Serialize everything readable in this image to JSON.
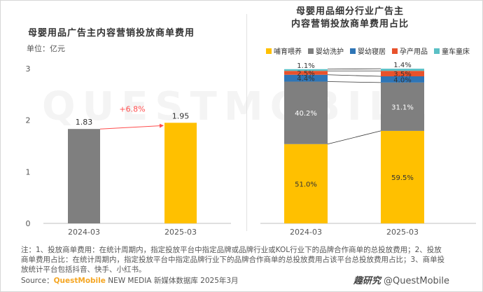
{
  "left_title": "母婴用品广告主内容营销投放商单费用",
  "unit_label": "单位：亿元",
  "right_title_line1": "母婴用品细分行业广告主",
  "right_title_line2": "内容营销投放商单费用占比",
  "growth_label": "+6.8%",
  "notes": "注：1、投放商单费用：在统计周期内，指定投放平台中指定品牌或品牌行业或KOL行业下的品牌合作商单的总投放费用；2、投放商单费用占比：在统计周期内，指定投放平台中指定品牌行业下的品牌合作商单的总投放费用占该平台总投放费用占比；3、商单投放统计平台包括抖音、快手、小红书。",
  "source_prefix": "Source：",
  "source_brand": "QuestMobile",
  "source_rest": " NEW MEDIA 新媒体数据库 2025年3月",
  "watermark_logo": "趣研究",
  "watermark_text": "@QuestMobile",
  "background_watermark": "QUESTMOBILE",
  "colors": {
    "gray_bar": "#7f7f7f",
    "yellow_bar": "#ffc000",
    "orange_bar": "#f5a623",
    "nurse": "#ffc000",
    "wash": "#7f7f7f",
    "sleep": "#2e75b6",
    "maternity": "#e8522c",
    "stroller": "#5bc0c5",
    "arrow": "#ff4d4d"
  },
  "chart_data": [
    {
      "type": "bar",
      "title": "母婴用品广告主内容营销投放商单费用",
      "ylabel": "单位：亿元",
      "categories": [
        "2024-03",
        "2025-03"
      ],
      "values": [
        1.83,
        1.95
      ],
      "ylim": [
        0,
        3
      ],
      "yticks": [
        0,
        1,
        2,
        3
      ],
      "annotation": "+6.8%"
    },
    {
      "type": "bar",
      "stacked": true,
      "title": "母婴用品细分行业广告主内容营销投放商单费用占比",
      "categories": [
        "2024-03",
        "2025-03"
      ],
      "series": [
        {
          "name": "哺育喂养",
          "values": [
            51.0,
            59.5
          ]
        },
        {
          "name": "婴幼洗护",
          "values": [
            40.2,
            31.1
          ]
        },
        {
          "name": "婴幼寝居",
          "values": [
            4.4,
            4.0
          ]
        },
        {
          "name": "孕产用品",
          "values": [
            2.5,
            3.5
          ]
        },
        {
          "name": "童车童床",
          "values": [
            1.1,
            1.4
          ]
        }
      ],
      "value_labels": [
        [
          "51.0%",
          "59.5%"
        ],
        [
          "40.2%",
          "31.1%"
        ],
        [
          "4.4%",
          "4.0%"
        ],
        [
          "2.5%",
          "3.5%"
        ],
        [
          "1.1%",
          "1.4%"
        ]
      ],
      "legend_position": "top"
    }
  ]
}
